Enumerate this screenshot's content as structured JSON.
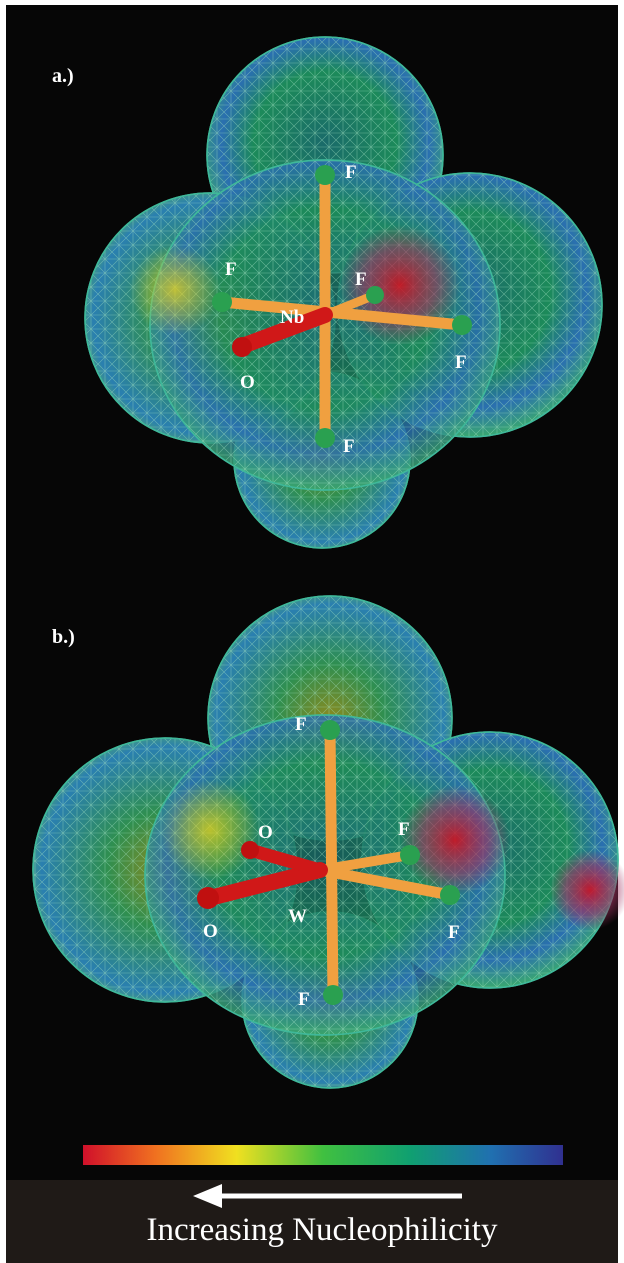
{
  "panels": [
    {
      "label": "a.)",
      "atoms": {
        "top": "F",
        "left": "F",
        "center": "Nb",
        "upper_right": "F",
        "right": "F",
        "oxygen": "O",
        "bottom": "F"
      }
    },
    {
      "label": "b.)",
      "atoms": {
        "top": "F",
        "oxygen_upper": "O",
        "upper_right": "F",
        "oxygen_left": "O",
        "center": "W",
        "right": "F",
        "bottom": "F"
      }
    }
  ],
  "color_scale": {
    "caption": "Increasing Nucleophilicity"
  }
}
